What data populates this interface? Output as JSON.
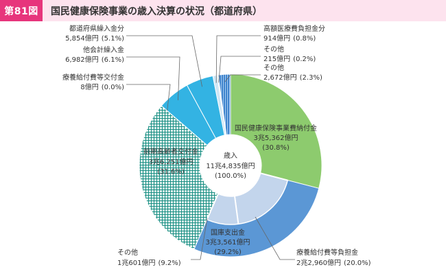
{
  "header": {
    "figure_label": "第81図",
    "title": "国民健康保険事業の歳入決算の状況（都道府県）"
  },
  "colors": {
    "badge": "#e7357c",
    "header_bg": "#fde3ee",
    "outer_green": "#8dcb6e",
    "outer_blue": "#5b97d5",
    "outer_teal_pattern": "#1a8f84",
    "outer_cyan": "#33b3e3",
    "outer_light": "#cfe6f5",
    "outer_stripe": "#3d82cc",
    "inner_light_blue": "#c3d5ec",
    "inner_pattern": "#1a8f84"
  },
  "chart_data": {
    "type": "pie",
    "center_label": {
      "line1": "歳入",
      "line2": "11兆4,835億円",
      "line3": "(100.0%)"
    },
    "outer_ring": [
      {
        "name": "国民健康保険事業費納付金",
        "value": 30.8,
        "amount": "3兆5,362億円",
        "percent": "(30.8%)",
        "fill": "outer_green"
      },
      {
        "name": "国庫支出金",
        "value": 29.2,
        "amount": "3兆3,561億円",
        "percent": "(29.2%)",
        "fill": "outer_blue"
      },
      {
        "name": "前期高齢者交付金",
        "value": 31.6,
        "amount": "3兆6,251億円",
        "percent": "(31.6%)",
        "fill": "outer_teal_pattern"
      },
      {
        "name": "療養給付費等交付金",
        "value": 0.0,
        "amount": "8億円",
        "percent": "(0.0%)",
        "fill": "outer_teal_pattern"
      },
      {
        "name": "他会計繰入金",
        "value": 6.1,
        "amount": "6,982億円",
        "percent": "(6.1%)",
        "fill": "outer_cyan"
      },
      {
        "name": "都道府県繰入金分",
        "value": 5.1,
        "amount": "5,854億円",
        "percent": "(5.1%)",
        "fill": "outer_cyan"
      },
      {
        "name": "高額医療費負担金分",
        "value": 0.8,
        "amount": "914億円",
        "percent": "(0.8%)",
        "fill": "outer_light"
      },
      {
        "name": "その他",
        "value": 0.2,
        "amount": "215億円",
        "percent": "(0.2%)",
        "fill": "outer_light"
      },
      {
        "name": "その他",
        "value": 2.3,
        "amount": "2,672億円",
        "percent": "(2.3%)",
        "fill": "outer_stripe"
      }
    ],
    "inner_ring": [
      {
        "name": "療養給付費等負担金",
        "value": 20.0,
        "amount": "2兆2,960億円",
        "percent": "(20.0%)"
      },
      {
        "name": "その他",
        "value": 9.2,
        "amount": "1兆601億円",
        "percent": "(9.2%)"
      }
    ]
  }
}
